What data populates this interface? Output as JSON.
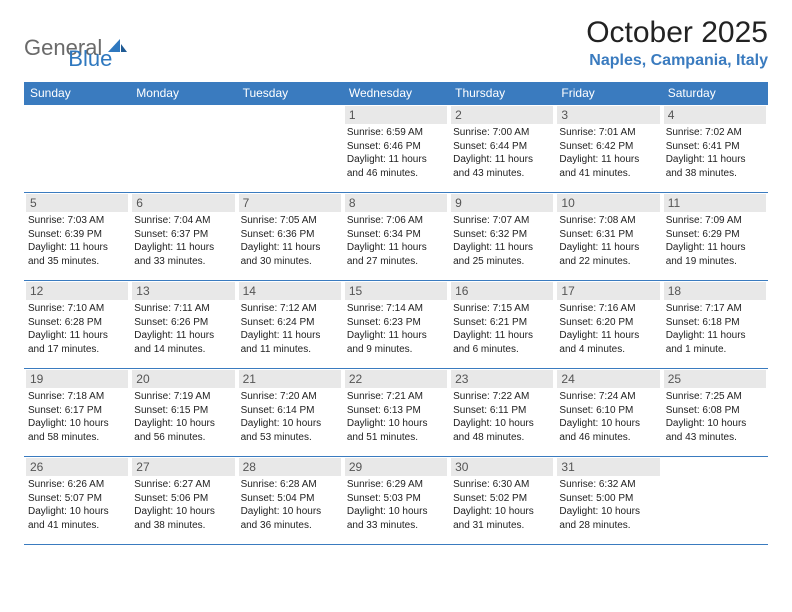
{
  "logo": {
    "general": "General",
    "blue": "Blue"
  },
  "title": "October 2025",
  "location": "Naples, Campania, Italy",
  "colors": {
    "header_bg": "#3a7bbf",
    "header_text": "#ffffff",
    "daynum_bg": "#e8e8e8",
    "border": "#3a7bbf",
    "location_text": "#3a7bbf",
    "logo_gray": "#6a6a6a",
    "body_text": "#222222"
  },
  "weekdays": [
    "Sunday",
    "Monday",
    "Tuesday",
    "Wednesday",
    "Thursday",
    "Friday",
    "Saturday"
  ],
  "grid": {
    "first_weekday_index": 3,
    "rows": 5,
    "cols": 7,
    "days_in_month": 31
  },
  "days": {
    "1": {
      "sr": "6:59 AM",
      "ss": "6:46 PM",
      "dl": "11 hours and 46 minutes."
    },
    "2": {
      "sr": "7:00 AM",
      "ss": "6:44 PM",
      "dl": "11 hours and 43 minutes."
    },
    "3": {
      "sr": "7:01 AM",
      "ss": "6:42 PM",
      "dl": "11 hours and 41 minutes."
    },
    "4": {
      "sr": "7:02 AM",
      "ss": "6:41 PM",
      "dl": "11 hours and 38 minutes."
    },
    "5": {
      "sr": "7:03 AM",
      "ss": "6:39 PM",
      "dl": "11 hours and 35 minutes."
    },
    "6": {
      "sr": "7:04 AM",
      "ss": "6:37 PM",
      "dl": "11 hours and 33 minutes."
    },
    "7": {
      "sr": "7:05 AM",
      "ss": "6:36 PM",
      "dl": "11 hours and 30 minutes."
    },
    "8": {
      "sr": "7:06 AM",
      "ss": "6:34 PM",
      "dl": "11 hours and 27 minutes."
    },
    "9": {
      "sr": "7:07 AM",
      "ss": "6:32 PM",
      "dl": "11 hours and 25 minutes."
    },
    "10": {
      "sr": "7:08 AM",
      "ss": "6:31 PM",
      "dl": "11 hours and 22 minutes."
    },
    "11": {
      "sr": "7:09 AM",
      "ss": "6:29 PM",
      "dl": "11 hours and 19 minutes."
    },
    "12": {
      "sr": "7:10 AM",
      "ss": "6:28 PM",
      "dl": "11 hours and 17 minutes."
    },
    "13": {
      "sr": "7:11 AM",
      "ss": "6:26 PM",
      "dl": "11 hours and 14 minutes."
    },
    "14": {
      "sr": "7:12 AM",
      "ss": "6:24 PM",
      "dl": "11 hours and 11 minutes."
    },
    "15": {
      "sr": "7:14 AM",
      "ss": "6:23 PM",
      "dl": "11 hours and 9 minutes."
    },
    "16": {
      "sr": "7:15 AM",
      "ss": "6:21 PM",
      "dl": "11 hours and 6 minutes."
    },
    "17": {
      "sr": "7:16 AM",
      "ss": "6:20 PM",
      "dl": "11 hours and 4 minutes."
    },
    "18": {
      "sr": "7:17 AM",
      "ss": "6:18 PM",
      "dl": "11 hours and 1 minute."
    },
    "19": {
      "sr": "7:18 AM",
      "ss": "6:17 PM",
      "dl": "10 hours and 58 minutes."
    },
    "20": {
      "sr": "7:19 AM",
      "ss": "6:15 PM",
      "dl": "10 hours and 56 minutes."
    },
    "21": {
      "sr": "7:20 AM",
      "ss": "6:14 PM",
      "dl": "10 hours and 53 minutes."
    },
    "22": {
      "sr": "7:21 AM",
      "ss": "6:13 PM",
      "dl": "10 hours and 51 minutes."
    },
    "23": {
      "sr": "7:22 AM",
      "ss": "6:11 PM",
      "dl": "10 hours and 48 minutes."
    },
    "24": {
      "sr": "7:24 AM",
      "ss": "6:10 PM",
      "dl": "10 hours and 46 minutes."
    },
    "25": {
      "sr": "7:25 AM",
      "ss": "6:08 PM",
      "dl": "10 hours and 43 minutes."
    },
    "26": {
      "sr": "6:26 AM",
      "ss": "5:07 PM",
      "dl": "10 hours and 41 minutes."
    },
    "27": {
      "sr": "6:27 AM",
      "ss": "5:06 PM",
      "dl": "10 hours and 38 minutes."
    },
    "28": {
      "sr": "6:28 AM",
      "ss": "5:04 PM",
      "dl": "10 hours and 36 minutes."
    },
    "29": {
      "sr": "6:29 AM",
      "ss": "5:03 PM",
      "dl": "10 hours and 33 minutes."
    },
    "30": {
      "sr": "6:30 AM",
      "ss": "5:02 PM",
      "dl": "10 hours and 31 minutes."
    },
    "31": {
      "sr": "6:32 AM",
      "ss": "5:00 PM",
      "dl": "10 hours and 28 minutes."
    }
  },
  "labels": {
    "sunrise": "Sunrise: ",
    "sunset": "Sunset: ",
    "daylight": "Daylight: "
  }
}
